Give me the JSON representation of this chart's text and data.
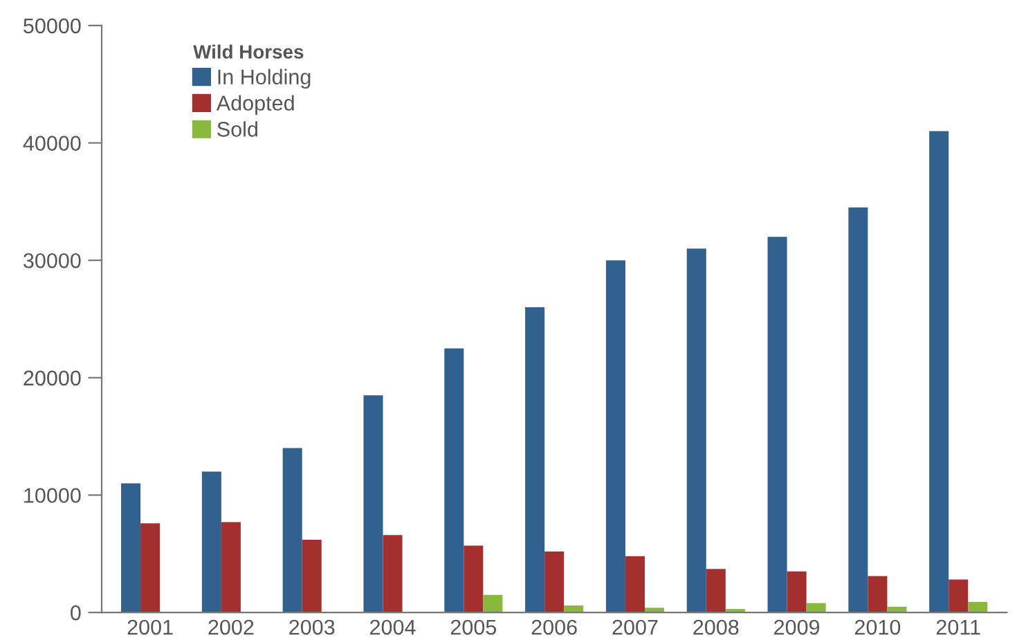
{
  "chart_data": {
    "type": "bar",
    "categories": [
      "2001",
      "2002",
      "2003",
      "2004",
      "2005",
      "2006",
      "2007",
      "2008",
      "2009",
      "2010",
      "2011"
    ],
    "series": [
      {
        "name": "In Holding",
        "color": "#31618f",
        "values": [
          11000,
          12000,
          14000,
          18500,
          22500,
          26000,
          30000,
          31000,
          32000,
          34500,
          41000
        ]
      },
      {
        "name": "Adopted",
        "color": "#a3302f",
        "values": [
          7600,
          7700,
          6200,
          6600,
          5700,
          5200,
          4800,
          3700,
          3500,
          3100,
          2800
        ]
      },
      {
        "name": "Sold",
        "color": "#88b83c",
        "values": [
          0,
          0,
          0,
          0,
          1500,
          600,
          400,
          300,
          800,
          500,
          900
        ]
      }
    ],
    "ylim": [
      0,
      50000
    ],
    "yticks": [
      0,
      10000,
      20000,
      30000,
      40000,
      50000
    ],
    "legend_title": "Wild Horses",
    "legend": "top left",
    "grid": false
  }
}
